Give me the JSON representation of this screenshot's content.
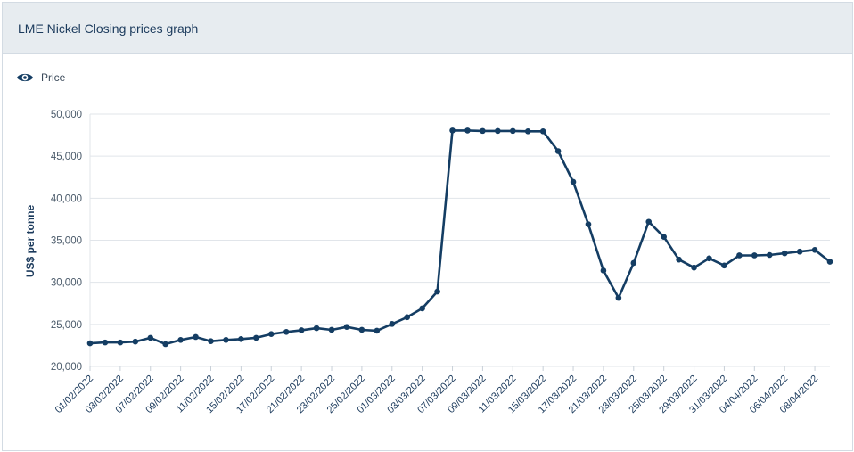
{
  "header": {
    "title": "LME Nickel Closing prices graph"
  },
  "legend": {
    "icon": "eye-icon",
    "label": "Price"
  },
  "colors": {
    "line": "#143d63",
    "grid": "#e1e5ea",
    "header_bg": "#e7ecf0"
  },
  "chart_data": {
    "type": "line",
    "title": "LME Nickel Closing prices graph",
    "xlabel": "",
    "ylabel": "US$ per tonne",
    "ylim": [
      20000,
      50000
    ],
    "yticks": [
      20000,
      25000,
      30000,
      35000,
      40000,
      45000,
      50000
    ],
    "ytick_labels": [
      "20,000",
      "25,000",
      "30,000",
      "35,000",
      "40,000",
      "45,000",
      "50,000"
    ],
    "grid": true,
    "legend_position": "top-left",
    "x": [
      "01/02/2022",
      "02/02/2022",
      "03/02/2022",
      "04/02/2022",
      "07/02/2022",
      "08/02/2022",
      "09/02/2022",
      "10/02/2022",
      "11/02/2022",
      "14/02/2022",
      "15/02/2022",
      "16/02/2022",
      "17/02/2022",
      "18/02/2022",
      "21/02/2022",
      "22/02/2022",
      "23/02/2022",
      "24/02/2022",
      "25/02/2022",
      "28/02/2022",
      "01/03/2022",
      "02/03/2022",
      "03/03/2022",
      "04/03/2022",
      "07/03/2022",
      "08/03/2022",
      "09/03/2022",
      "10/03/2022",
      "11/03/2022",
      "14/03/2022",
      "15/03/2022",
      "16/03/2022",
      "17/03/2022",
      "18/03/2022",
      "21/03/2022",
      "22/03/2022",
      "23/03/2022",
      "24/03/2022",
      "25/03/2022",
      "28/03/2022",
      "29/03/2022",
      "30/03/2022",
      "31/03/2022",
      "01/04/2022",
      "04/04/2022",
      "05/04/2022",
      "06/04/2022",
      "07/04/2022",
      "08/04/2022",
      "11/04/2022"
    ],
    "x_tick_labels": [
      "01/02/2022",
      "03/02/2022",
      "07/02/2022",
      "09/02/2022",
      "11/02/2022",
      "15/02/2022",
      "17/02/2022",
      "21/02/2022",
      "23/02/2022",
      "25/02/2022",
      "01/03/2022",
      "03/03/2022",
      "07/03/2022",
      "09/03/2022",
      "11/03/2022",
      "15/03/2022",
      "17/03/2022",
      "21/03/2022",
      "23/03/2022",
      "25/03/2022",
      "29/03/2022",
      "31/03/2022",
      "04/04/2022",
      "06/04/2022",
      "08/04/2022"
    ],
    "series": [
      {
        "name": "Price",
        "values": [
          22750,
          22850,
          22850,
          22950,
          23400,
          22650,
          23150,
          23500,
          23000,
          23150,
          23250,
          23400,
          23850,
          24100,
          24300,
          24550,
          24350,
          24700,
          24350,
          24250,
          25050,
          25850,
          26900,
          28900,
          48050,
          48050,
          48000,
          48000,
          48000,
          47950,
          47950,
          45600,
          41950,
          36900,
          31400,
          28150,
          32300,
          37200,
          35400,
          32700,
          31750,
          32850,
          32000,
          33200,
          33200,
          33250,
          33450,
          33650,
          33850,
          32450
        ]
      }
    ]
  }
}
